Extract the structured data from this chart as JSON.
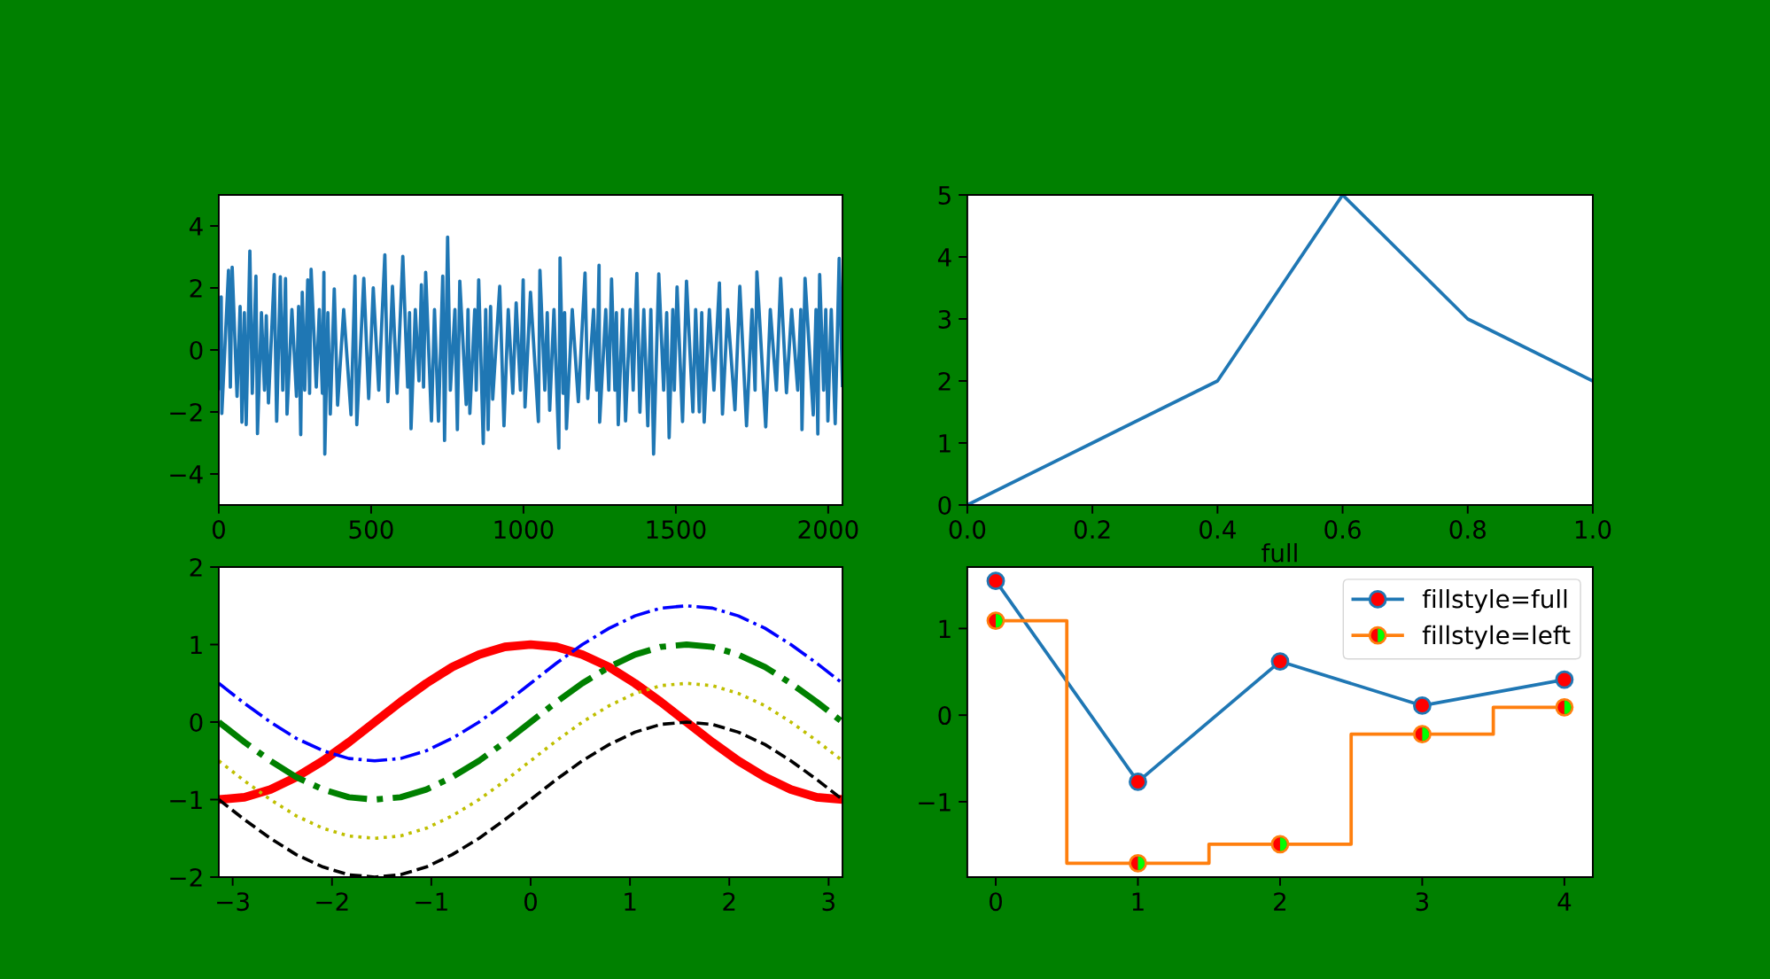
{
  "chart_data": [
    {
      "type": "line",
      "x": [
        0,
        8,
        10,
        32,
        38,
        44,
        60,
        70,
        76,
        84,
        90,
        102,
        110,
        122,
        127,
        140,
        150,
        156,
        163,
        182,
        190,
        202,
        210,
        219,
        224,
        240,
        255,
        262,
        269,
        274,
        282,
        292,
        298,
        303,
        320,
        330,
        340,
        345,
        348,
        358,
        366,
        379,
        390,
        410,
        434,
        447,
        453,
        476,
        492,
        507,
        525,
        545,
        555,
        570,
        585,
        604,
        620,
        626,
        631,
        645,
        657,
        665,
        672,
        679,
        698,
        708,
        721,
        735,
        741,
        751,
        760,
        775,
        783,
        791,
        812,
        818,
        824,
        840,
        845,
        853,
        868,
        876,
        884,
        892,
        899,
        922,
        936,
        950,
        965,
        976,
        990,
        999,
        1005,
        1023,
        1049,
        1054,
        1070,
        1078,
        1086,
        1100,
        1116,
        1120,
        1130,
        1135,
        1141,
        1160,
        1180,
        1202,
        1211,
        1230,
        1240,
        1248,
        1250,
        1270,
        1280,
        1289,
        1300,
        1305,
        1311,
        1325,
        1335,
        1350,
        1360,
        1372,
        1382,
        1395,
        1408,
        1418,
        1427,
        1444,
        1460,
        1470,
        1478,
        1490,
        1495,
        1504,
        1522,
        1535,
        1556,
        1565,
        1577,
        1585,
        1593,
        1610,
        1625,
        1643,
        1653,
        1670,
        1694,
        1710,
        1732,
        1750,
        1760,
        1766,
        1795,
        1810,
        1830,
        1844,
        1863,
        1880,
        1900,
        1910,
        1914,
        1924,
        1951,
        1960,
        1966,
        1972,
        1985,
        1992,
        1999,
        2010,
        2023,
        2036,
        2047
      ],
      "values": [
        -1.3,
        1.71,
        -2.05,
        2.57,
        -1.2,
        2.67,
        -1.5,
        1.4,
        -2.33,
        1.2,
        -2.41,
        3.19,
        -1.4,
        2.38,
        -2.7,
        1.2,
        -1.3,
        1.1,
        -1.71,
        2.43,
        -2.3,
        2.36,
        -1.3,
        2.3,
        -2.07,
        1.3,
        -1.5,
        1.4,
        -2.73,
        1.86,
        -1.3,
        2.26,
        -1.4,
        2.6,
        -1.2,
        1.3,
        -1.4,
        2.5,
        -3.36,
        1.2,
        -2.07,
        1.97,
        -1.78,
        1.3,
        -2.09,
        2.38,
        -2.41,
        2.31,
        -1.57,
        2.0,
        -1.3,
        3.07,
        -1.67,
        2.05,
        -1.4,
        3.02,
        -1.2,
        1.2,
        -2.54,
        1.3,
        -1.0,
        2.1,
        -1.2,
        2.5,
        -2.29,
        1.3,
        -2.3,
        2.38,
        -2.92,
        3.64,
        -1.3,
        1.3,
        -2.57,
        2.22,
        -1.76,
        1.3,
        -2.05,
        1.3,
        -1.3,
        2.26,
        -3.02,
        1.3,
        -2.57,
        1.4,
        -1.59,
        2.05,
        -2.45,
        1.3,
        -1.4,
        1.52,
        -1.3,
        2.26,
        -1.84,
        1.86,
        -2.31,
        2.57,
        -1.3,
        1.2,
        -1.95,
        1.3,
        -3.17,
        2.97,
        -1.4,
        1.2,
        -2.54,
        1.3,
        -1.67,
        2.48,
        -1.57,
        1.3,
        -1.3,
        2.73,
        -2.33,
        1.3,
        -1.3,
        2.29,
        -1.3,
        1.2,
        -2.41,
        1.3,
        -2.29,
        1.3,
        -1.3,
        2.47,
        -2.01,
        1.3,
        -2.45,
        1.3,
        -3.36,
        2.45,
        -1.3,
        1.2,
        -2.83,
        1.3,
        -1.3,
        2.03,
        -2.31,
        2.22,
        -2.0,
        1.3,
        -2.0,
        1.2,
        -2.33,
        1.3,
        -1.3,
        2.16,
        -2.07,
        1.3,
        -1.93,
        2.05,
        -2.45,
        1.3,
        -1.3,
        2.52,
        -2.48,
        1.3,
        -1.3,
        2.31,
        -1.38,
        1.3,
        -1.3,
        1.3,
        -2.57,
        2.31,
        -2.1,
        1.3,
        -2.71,
        2.43,
        -1.3,
        1.3,
        -2.29,
        1.3,
        -2.38,
        2.95,
        -1.2
      ],
      "color": "#1f77b4",
      "line_style": "solid",
      "xlim": [
        0,
        2047
      ],
      "xticks": [
        0,
        500,
        1000,
        1500,
        2000
      ],
      "ylim": [
        -5,
        5
      ],
      "yticks": [
        {
          "value": -4,
          "label": "−4"
        },
        {
          "value": -2,
          "label": "−2"
        },
        0,
        2,
        4
      ]
    },
    {
      "type": "line",
      "x": [
        0,
        0.2,
        0.4,
        0.6,
        0.8,
        1
      ],
      "values": [
        0,
        1,
        2,
        5,
        3,
        2
      ],
      "color": "#1f77b4",
      "line_style": "solid",
      "xlim": [
        0,
        1
      ],
      "xticks": [
        {
          "value": 0,
          "label": "0.0"
        },
        0.2,
        0.4,
        0.6,
        0.8,
        {
          "value": 1,
          "label": "1.0"
        }
      ],
      "ylim": [
        0,
        5
      ],
      "yticks": [
        0,
        1,
        2,
        3,
        4,
        5
      ]
    },
    {
      "type": "line",
      "x": [
        -3.14,
        -2.88,
        -2.62,
        -2.36,
        -2.09,
        -1.83,
        -1.57,
        -1.31,
        -1.05,
        -0.79,
        -0.52,
        -0.26,
        0,
        0.26,
        0.52,
        0.79,
        1.05,
        1.31,
        1.57,
        1.83,
        2.09,
        2.36,
        2.62,
        2.88,
        3.14
      ],
      "series": [
        {
          "color": "#ff0000",
          "line_style": "solid",
          "values": [
            -1,
            -0.97,
            -0.87,
            -0.71,
            -0.5,
            -0.26,
            0,
            0.26,
            0.5,
            0.71,
            0.87,
            0.97,
            1,
            0.97,
            0.87,
            0.71,
            0.5,
            0.26,
            0,
            -0.26,
            -0.5,
            -0.71,
            -0.87,
            -0.97,
            -1
          ]
        },
        {
          "color": "#0000ff",
          "line_style": "dashdot",
          "values": [
            0.5,
            0.24,
            0,
            -0.21,
            -0.37,
            -0.47,
            -0.5,
            -0.47,
            -0.37,
            -0.21,
            0,
            0.24,
            0.5,
            0.76,
            1,
            1.21,
            1.37,
            1.47,
            1.5,
            1.47,
            1.37,
            1.21,
            1,
            0.76,
            0.5
          ]
        },
        {
          "color": "#008000",
          "line_style": "dashdot",
          "values": [
            0,
            -0.26,
            -0.5,
            -0.71,
            -0.87,
            -0.97,
            -1,
            -0.97,
            -0.87,
            -0.71,
            -0.5,
            -0.26,
            0,
            0.26,
            0.5,
            0.71,
            0.87,
            0.97,
            1,
            0.97,
            0.87,
            0.71,
            0.5,
            0.26,
            0
          ]
        },
        {
          "color": "#bfbf00",
          "line_style": "dotted",
          "values": [
            -0.5,
            -0.76,
            -1,
            -1.21,
            -1.37,
            -1.47,
            -1.5,
            -1.47,
            -1.37,
            -1.21,
            -1,
            -0.76,
            -0.5,
            -0.24,
            0,
            0.21,
            0.37,
            0.47,
            0.5,
            0.47,
            0.37,
            0.21,
            0,
            -0.24,
            -0.5
          ]
        },
        {
          "color": "#000000",
          "line_style": "dashed",
          "values": [
            -1,
            -1.26,
            -1.5,
            -1.71,
            -1.87,
            -1.97,
            -2,
            -1.97,
            -1.87,
            -1.71,
            -1.5,
            -1.26,
            -1,
            -0.74,
            -0.5,
            -0.29,
            -0.13,
            -0.03,
            0,
            -0.03,
            -0.13,
            -0.29,
            -0.5,
            -0.74,
            -1
          ]
        }
      ],
      "xlim": [
        -3.14,
        3.14
      ],
      "xticks": [
        {
          "value": -3,
          "label": "−3"
        },
        {
          "value": -2,
          "label": "−2"
        },
        {
          "value": -1,
          "label": "−1"
        },
        0,
        1,
        2,
        3
      ],
      "ylim": [
        -2,
        2
      ],
      "yticks": [
        {
          "value": -2,
          "label": "−2"
        },
        {
          "value": -1,
          "label": "−1"
        },
        0,
        1,
        2
      ]
    },
    {
      "type": "line",
      "title": "full",
      "x": [
        0,
        1,
        2,
        3,
        4
      ],
      "series": [
        {
          "name": "fillstyle=full",
          "color": "#1f77b4",
          "colors": [
            "#ff0000",
            "#ff0000",
            "#ff0000",
            "#ff0000",
            "#ff0000"
          ],
          "marker": "circle",
          "values": [
            1.55,
            -0.77,
            0.62,
            0.11,
            0.41
          ]
        },
        {
          "name": "fillstyle=left",
          "type": "step",
          "color": "#ff7f0e",
          "colors": [
            "#ff0000",
            "#ff0000",
            "#ff0000",
            "#ff0000",
            "#ff0000"
          ],
          "marker": "circle",
          "values": [
            1.09,
            -1.71,
            -1.49,
            -0.22,
            0.09
          ]
        }
      ],
      "xlim": [
        -0.2,
        4.2
      ],
      "xticks": [
        0,
        1,
        2,
        3,
        4
      ],
      "ylim": [
        -1.87,
        1.71
      ],
      "yticks": [
        {
          "value": -1,
          "label": "−1"
        },
        0,
        1
      ],
      "legend": "top right"
    }
  ]
}
